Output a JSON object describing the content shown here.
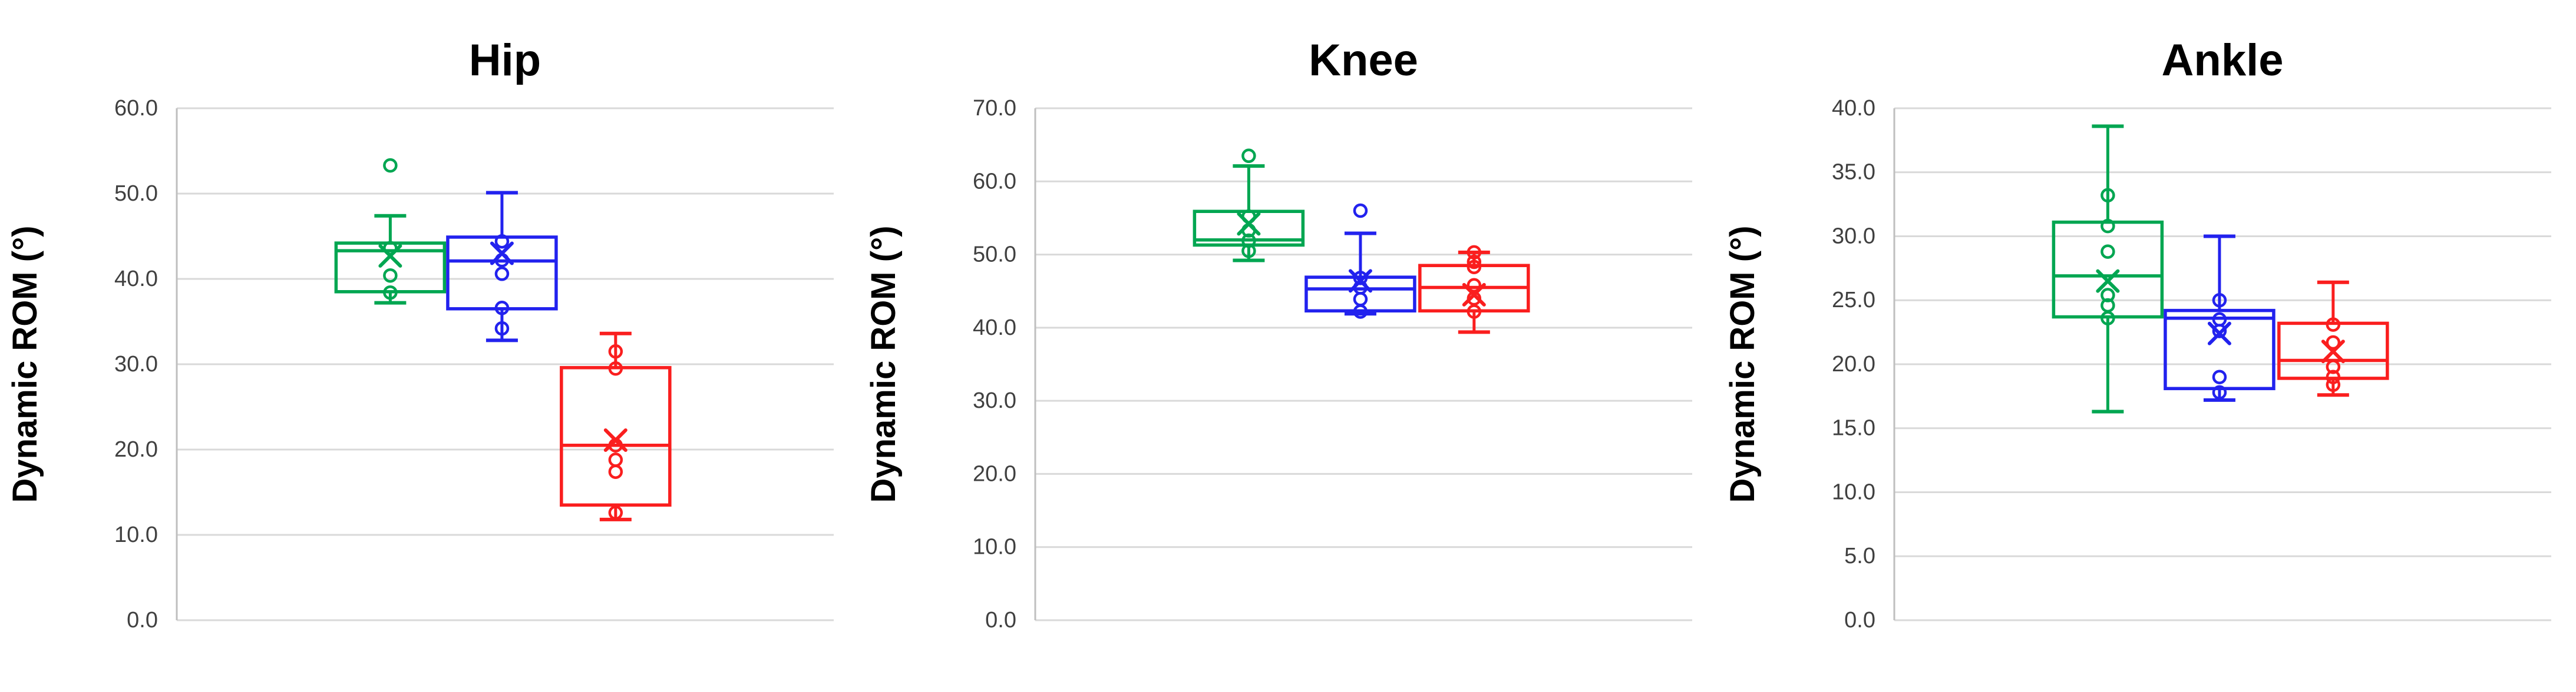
{
  "figure": {
    "background": "#ffffff",
    "grid_color": "#d9d9d9",
    "axis_color": "#bfbfbf"
  },
  "chart_data": [
    {
      "type": "box",
      "title": "Hip",
      "ylabel": "Dynamic ROM (°)",
      "ylim": [
        0,
        60
      ],
      "ytick_step": 10,
      "ytick_labels": [
        "0.0",
        "10.0",
        "20.0",
        "30.0",
        "40.0",
        "50.0",
        "60.0"
      ],
      "grid": true,
      "legend": "none",
      "series": [
        {
          "name": "green",
          "color": "#00a651",
          "whisker_low": 37.2,
          "q1": 38.5,
          "median": 43.3,
          "q3": 44.2,
          "whisker_high": 47.4,
          "mean": 42.7,
          "points": [
            53.3,
            43.6,
            40.4,
            38.4
          ]
        },
        {
          "name": "blue",
          "color": "#2222ee",
          "whisker_low": 32.8,
          "q1": 36.5,
          "median": 42.1,
          "q3": 44.9,
          "whisker_high": 50.1,
          "mean": 43.0,
          "points": [
            44.4,
            42.2,
            40.6,
            36.6,
            34.2
          ]
        },
        {
          "name": "red",
          "color": "#fa1e1e",
          "whisker_low": 11.8,
          "q1": 13.5,
          "median": 20.5,
          "q3": 29.6,
          "whisker_high": 33.6,
          "mean": 21.1,
          "points": [
            31.5,
            29.5,
            20.5,
            18.8,
            17.4,
            12.6
          ]
        }
      ]
    },
    {
      "type": "box",
      "title": "Knee",
      "ylabel": "Dynamic ROM (°)",
      "ylim": [
        0,
        70
      ],
      "ytick_step": 10,
      "ytick_labels": [
        "0.0",
        "10.0",
        "20.0",
        "30.0",
        "40.0",
        "50.0",
        "60.0",
        "70.0"
      ],
      "grid": true,
      "legend": "none",
      "series": [
        {
          "name": "green",
          "color": "#00a651",
          "whisker_low": 49.2,
          "q1": 51.3,
          "median": 52.0,
          "q3": 55.9,
          "whisker_high": 62.1,
          "mean": 54.2,
          "points": [
            63.5,
            55.2,
            53.3,
            51.9,
            50.5
          ]
        },
        {
          "name": "blue",
          "color": "#2222ee",
          "whisker_low": 41.9,
          "q1": 42.3,
          "median": 45.3,
          "q3": 46.9,
          "whisker_high": 52.9,
          "mean": 46.4,
          "points": [
            56.0,
            46.8,
            45.5,
            43.9,
            42.2
          ]
        },
        {
          "name": "red",
          "color": "#fa1e1e",
          "whisker_low": 39.4,
          "q1": 42.3,
          "median": 45.5,
          "q3": 48.5,
          "whisker_high": 50.3,
          "mean": 44.5,
          "points": [
            50.3,
            49.0,
            48.3,
            45.8,
            44.0,
            42.2
          ]
        }
      ]
    },
    {
      "type": "box",
      "title": "Ankle",
      "ylabel": "Dynamic ROM (°)",
      "ylim": [
        0,
        40
      ],
      "ytick_step": 5,
      "ytick_labels": [
        "0.0",
        "5.0",
        "10.0",
        "15.0",
        "20.0",
        "25.0",
        "30.0",
        "35.0",
        "40.0"
      ],
      "grid": true,
      "legend": "none",
      "series": [
        {
          "name": "green",
          "color": "#00a651",
          "whisker_low": 16.3,
          "q1": 23.7,
          "median": 26.9,
          "q3": 31.1,
          "whisker_high": 38.6,
          "mean": 26.5,
          "points": [
            33.2,
            30.8,
            28.8,
            25.4,
            24.6,
            23.6
          ]
        },
        {
          "name": "blue",
          "color": "#2222ee",
          "whisker_low": 17.2,
          "q1": 18.1,
          "median": 23.6,
          "q3": 24.2,
          "whisker_high": 30.0,
          "mean": 22.4,
          "points": [
            25.0,
            23.5,
            22.6,
            19.0,
            17.8
          ]
        },
        {
          "name": "red",
          "color": "#fa1e1e",
          "whisker_low": 17.6,
          "q1": 18.9,
          "median": 20.3,
          "q3": 23.2,
          "whisker_high": 26.4,
          "mean": 21.0,
          "points": [
            23.1,
            21.7,
            19.8,
            19.0,
            18.4
          ]
        }
      ]
    }
  ]
}
